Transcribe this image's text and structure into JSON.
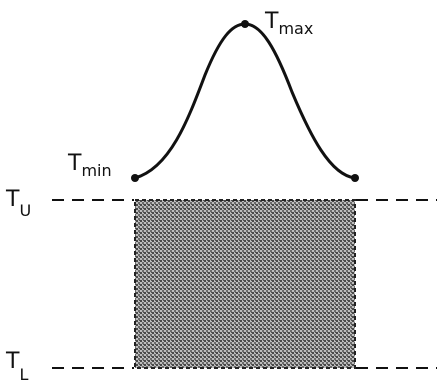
{
  "labels": {
    "t_max": {
      "base": "T",
      "sub": "max"
    },
    "t_min": {
      "base": "T",
      "sub": "min"
    },
    "t_u": {
      "base": "T",
      "sub": "U"
    },
    "t_l": {
      "base": "T",
      "sub": "L"
    }
  },
  "colors": {
    "ink": "#111111",
    "shade_dark": "#555555",
    "shade_light": "#bdbdbd",
    "background": "#ffffff"
  }
}
